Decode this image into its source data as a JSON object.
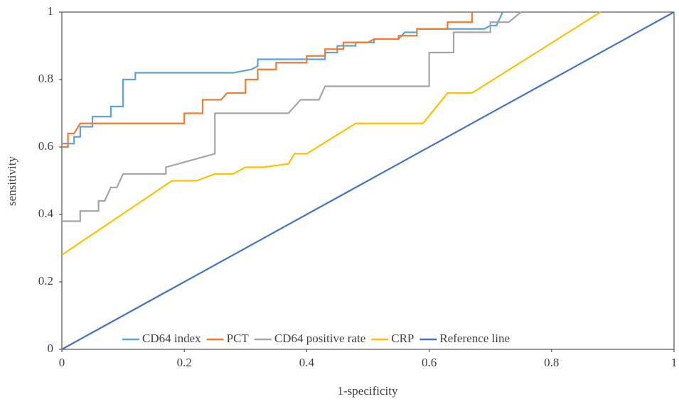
{
  "chart_data": {
    "type": "line",
    "xlabel": "1-specificity",
    "ylabel": "sensitivity",
    "xlim": [
      0,
      1
    ],
    "ylim": [
      0,
      1
    ],
    "xticks": [
      0,
      0.2,
      0.4,
      0.6,
      0.8,
      1
    ],
    "yticks": [
      0,
      0.2,
      0.4,
      0.6,
      0.8,
      1
    ],
    "legend": "bottom",
    "series": [
      {
        "name": "CD64 index",
        "color": "#5ba3d9",
        "x": [
          0,
          0.02,
          0.02,
          0.03,
          0.03,
          0.05,
          0.05,
          0.08,
          0.08,
          0.1,
          0.1,
          0.12,
          0.12,
          0.28,
          0.31,
          0.32,
          0.32,
          0.43,
          0.43,
          0.45,
          0.45,
          0.48,
          0.48,
          0.51,
          0.51,
          0.55,
          0.56,
          0.58,
          0.58,
          0.69,
          0.7,
          0.71,
          0.72
        ],
        "values": [
          0.61,
          0.61,
          0.63,
          0.63,
          0.66,
          0.66,
          0.69,
          0.69,
          0.72,
          0.72,
          0.8,
          0.8,
          0.82,
          0.82,
          0.83,
          0.84,
          0.86,
          0.86,
          0.88,
          0.88,
          0.9,
          0.9,
          0.91,
          0.91,
          0.92,
          0.92,
          0.94,
          0.94,
          0.95,
          0.95,
          0.96,
          0.96,
          1
        ]
      },
      {
        "name": "PCT",
        "color": "#ed7d31",
        "x": [
          0,
          0.01,
          0.01,
          0.02,
          0.03,
          0.2,
          0.2,
          0.23,
          0.23,
          0.26,
          0.27,
          0.3,
          0.3,
          0.32,
          0.32,
          0.35,
          0.35,
          0.4,
          0.4,
          0.43,
          0.43,
          0.46,
          0.46,
          0.5,
          0.51,
          0.55,
          0.55,
          0.58,
          0.58,
          0.63,
          0.63,
          0.67,
          0.67
        ],
        "values": [
          0.6,
          0.6,
          0.64,
          0.64,
          0.67,
          0.67,
          0.7,
          0.7,
          0.74,
          0.74,
          0.76,
          0.76,
          0.8,
          0.8,
          0.83,
          0.83,
          0.85,
          0.85,
          0.87,
          0.87,
          0.89,
          0.89,
          0.91,
          0.91,
          0.92,
          0.92,
          0.93,
          0.93,
          0.95,
          0.95,
          0.97,
          0.97,
          1
        ]
      },
      {
        "name": "CD64 positive rate",
        "color": "#a5a5a5",
        "x": [
          0,
          0.03,
          0.03,
          0.06,
          0.06,
          0.07,
          0.08,
          0.09,
          0.1,
          0.17,
          0.17,
          0.19,
          0.25,
          0.25,
          0.37,
          0.39,
          0.42,
          0.43,
          0.6,
          0.6,
          0.64,
          0.64,
          0.7,
          0.7,
          0.73,
          0.75
        ],
        "values": [
          0.38,
          0.38,
          0.41,
          0.41,
          0.44,
          0.44,
          0.48,
          0.48,
          0.52,
          0.52,
          0.54,
          0.55,
          0.58,
          0.7,
          0.7,
          0.74,
          0.74,
          0.78,
          0.78,
          0.88,
          0.88,
          0.94,
          0.94,
          0.97,
          0.97,
          1
        ]
      },
      {
        "name": "CRP",
        "color": "#ffc000",
        "x": [
          0,
          0.18,
          0.2,
          0.22,
          0.25,
          0.28,
          0.3,
          0.33,
          0.37,
          0.38,
          0.4,
          0.48,
          0.59,
          0.63,
          0.67,
          0.88
        ],
        "values": [
          0.28,
          0.5,
          0.5,
          0.5,
          0.52,
          0.52,
          0.54,
          0.54,
          0.55,
          0.58,
          0.58,
          0.67,
          0.67,
          0.76,
          0.76,
          1
        ]
      },
      {
        "name": "Reference line",
        "color": "#4472c4",
        "x": [
          0,
          1
        ],
        "values": [
          0,
          1
        ]
      }
    ]
  }
}
